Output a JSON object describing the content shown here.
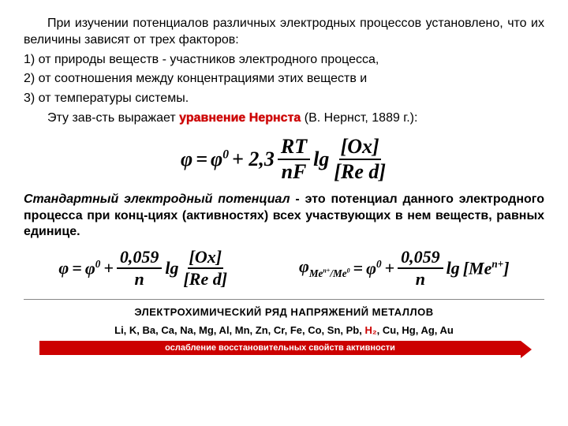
{
  "intro": {
    "p1": "При изучении потенциалов различных электродных процессов установлено, что их величины зависят от трех факторов:",
    "i1": "1)   от природы веществ - участников электродного процесса,",
    "i2": "2)   от соотношения между концентрациями этих веществ и",
    "i3": "3)   от температуры системы.",
    "p2a": "Эту зав-сть выражает ",
    "p2b": "уравнение Нернста",
    "p2c": " (В. Нернст, 1889 г.):"
  },
  "eq1": {
    "phi": "φ",
    "eq": "=",
    "phi0": "φ",
    "sup0": "0",
    "plus": "+ 2,3",
    "RT": "RT",
    "nF": "nF",
    "lg": "lg",
    "Ox": "[Ox]",
    "Red": "[Re d]"
  },
  "def": {
    "a": "Стандартный электродный потенциал",
    "b": " - это потенциал данного электродного процесса при конц-циях (активностях) всех участвующих в нем веществ, равных единице."
  },
  "eq2": {
    "left": {
      "phi": "φ",
      "eq": "=",
      "phi0": "φ",
      "sup0": "0",
      "plus": "+",
      "num": "0,059",
      "den": "n",
      "lg": "lg",
      "Ox": "[Ox]",
      "Red": "[Re d]"
    },
    "right": {
      "phi": "φ",
      "sub1": "Me",
      "supn1": "n+",
      "slash": "/",
      "sub2": "Me",
      "sup0b": "0",
      "eq": "=",
      "phi0": "φ",
      "sup0": "0",
      "plus": "+",
      "num": "0,059",
      "den": "n",
      "lg": "lg",
      "M": "[Me",
      "Mn": "n+",
      "Mc": "]"
    }
  },
  "series": {
    "title": "ЭЛЕКТРОХИМИЧЕСКИЙ РЯД НАПРЯЖЕНИЙ МЕТАЛЛОВ",
    "metals_before": "Li, K, Ba, Ca, Na, Mg, Al, Mn, Zn, Cr, Fe, Co, Sn, Pb, ",
    "h2": "H₂",
    "metals_after": ", Cu, Hg, Ag, Au",
    "arrow": "ослабление восстановительных свойств активности"
  }
}
